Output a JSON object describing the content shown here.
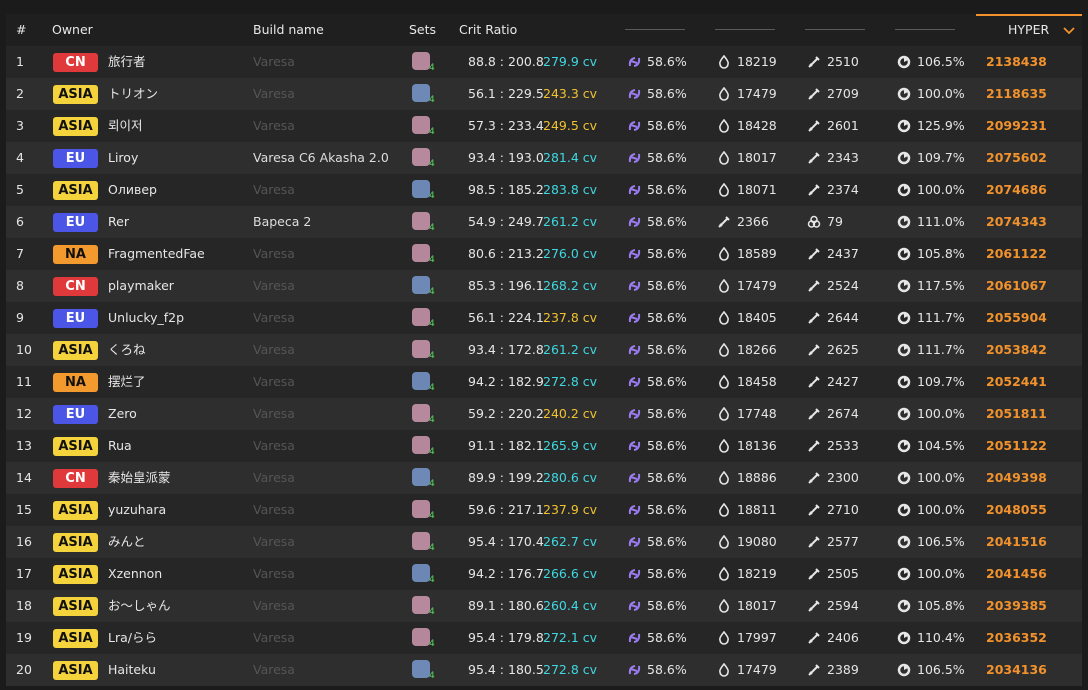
{
  "header": {
    "rank": "#",
    "owner": "Owner",
    "build": "Build name",
    "sets": "Sets",
    "crit": "Crit Ratio",
    "hyper": "HYPER"
  },
  "region_colors": {
    "CN": {
      "bg": "#e0393b",
      "fg": "#ffffff"
    },
    "ASIA": {
      "bg": "#f4d33d",
      "fg": "#111111"
    },
    "EU": {
      "bg": "#4b55e6",
      "fg": "#ffffff"
    },
    "NA": {
      "bg": "#f39a2e",
      "fg": "#111111"
    }
  },
  "rows": [
    {
      "rank": 1,
      "region": "CN",
      "owner": "旅行者",
      "build": "Varesa",
      "build_color": "#555555",
      "sets": "4",
      "crit": "88.8 : 200.8",
      "cv": "279.9 cv",
      "cv_color": "#3fd8e0",
      "stats": [
        "58.6%",
        18219,
        2510,
        "106.5%"
      ],
      "hyper": 2138438
    },
    {
      "rank": 2,
      "region": "ASIA",
      "owner": "トリオン",
      "build": "Varesa",
      "build_color": "#555555",
      "sets": "4",
      "crit": "56.1 : 229.5",
      "cv": "243.3 cv",
      "cv_color": "#f2c230",
      "stats": [
        "58.6%",
        17479,
        2709,
        "100.0%"
      ],
      "hyper": 2118635
    },
    {
      "rank": 3,
      "region": "ASIA",
      "owner": "뢰이저",
      "build": "Varesa",
      "build_color": "#555555",
      "sets": "4",
      "crit": "57.3 : 233.4",
      "cv": "249.5 cv",
      "cv_color": "#f2c230",
      "stats": [
        "58.6%",
        18428,
        2601,
        "125.9%"
      ],
      "hyper": 2099231
    },
    {
      "rank": 4,
      "region": "EU",
      "owner": "Liroy",
      "build": "Varesa C6 Akasha 2.0",
      "build_color": "#dddddd",
      "sets": "4",
      "crit": "93.4 : 193.0",
      "cv": "281.4 cv",
      "cv_color": "#3fd8e0",
      "stats": [
        "58.6%",
        18017,
        2343,
        "109.7%"
      ],
      "hyper": 2075602
    },
    {
      "rank": 5,
      "region": "ASIA",
      "owner": "Оливер",
      "build": "Varesa",
      "build_color": "#555555",
      "sets": "4",
      "crit": "98.5 : 185.2",
      "cv": "283.8 cv",
      "cv_color": "#3fd8e0",
      "stats": [
        "58.6%",
        18071,
        2374,
        "100.0%"
      ],
      "hyper": 2074686
    },
    {
      "rank": 6,
      "region": "EU",
      "owner": "Rer",
      "build": "Вареса 2",
      "build_color": "#dddddd",
      "sets": "4",
      "crit": "54.9 : 249.7",
      "cv": "261.2 cv",
      "cv_color": "#3fd8e0",
      "stats": [
        "58.6%",
        2366,
        79,
        "111.0%"
      ],
      "hyper": 2074343
    },
    {
      "rank": 7,
      "region": "NA",
      "owner": "FragmentedFae",
      "build": "Varesa",
      "build_color": "#555555",
      "sets": "4",
      "crit": "80.6 : 213.2",
      "cv": "276.0 cv",
      "cv_color": "#3fd8e0",
      "stats": [
        "58.6%",
        18589,
        2437,
        "105.8%"
      ],
      "hyper": 2061122
    },
    {
      "rank": 8,
      "region": "CN",
      "owner": "playmaker",
      "build": "Varesa",
      "build_color": "#555555",
      "sets": "4",
      "crit": "85.3 : 196.1",
      "cv": "268.2 cv",
      "cv_color": "#3fd8e0",
      "stats": [
        "58.6%",
        17479,
        2524,
        "117.5%"
      ],
      "hyper": 2061067
    },
    {
      "rank": 9,
      "region": "EU",
      "owner": "Unlucky_f2p",
      "build": "Varesa",
      "build_color": "#555555",
      "sets": "4",
      "crit": "56.1 : 224.1",
      "cv": "237.8 cv",
      "cv_color": "#f2c230",
      "stats": [
        "58.6%",
        18405,
        2644,
        "111.7%"
      ],
      "hyper": 2055904
    },
    {
      "rank": 10,
      "region": "ASIA",
      "owner": "くろね",
      "build": "Varesa",
      "build_color": "#555555",
      "sets": "4",
      "crit": "93.4 : 172.8",
      "cv": "261.2 cv",
      "cv_color": "#3fd8e0",
      "stats": [
        "58.6%",
        18266,
        2625,
        "111.7%"
      ],
      "hyper": 2053842
    },
    {
      "rank": 11,
      "region": "NA",
      "owner": "摆烂了",
      "build": "Varesa",
      "build_color": "#555555",
      "sets": "4",
      "crit": "94.2 : 182.9",
      "cv": "272.8 cv",
      "cv_color": "#3fd8e0",
      "stats": [
        "58.6%",
        18458,
        2427,
        "109.7%"
      ],
      "hyper": 2052441
    },
    {
      "rank": 12,
      "region": "EU",
      "owner": "Zero",
      "build": "Varesa",
      "build_color": "#555555",
      "sets": "4",
      "crit": "59.2 : 220.2",
      "cv": "240.2 cv",
      "cv_color": "#f2c230",
      "stats": [
        "58.6%",
        17748,
        2674,
        "100.0%"
      ],
      "hyper": 2051811
    },
    {
      "rank": 13,
      "region": "ASIA",
      "owner": "Rua",
      "build": "Varesa",
      "build_color": "#555555",
      "sets": "4",
      "crit": "91.1 : 182.1",
      "cv": "265.9 cv",
      "cv_color": "#3fd8e0",
      "stats": [
        "58.6%",
        18136,
        2533,
        "104.5%"
      ],
      "hyper": 2051122
    },
    {
      "rank": 14,
      "region": "CN",
      "owner": "秦始皇派蒙",
      "build": "Varesa",
      "build_color": "#555555",
      "sets": "4",
      "crit": "89.9 : 199.2",
      "cv": "280.6 cv",
      "cv_color": "#3fd8e0",
      "stats": [
        "58.6%",
        18886,
        2300,
        "100.0%"
      ],
      "hyper": 2049398
    },
    {
      "rank": 15,
      "region": "ASIA",
      "owner": "yuzuhara",
      "build": "Varesa",
      "build_color": "#555555",
      "sets": "4",
      "crit": "59.6 : 217.1",
      "cv": "237.9 cv",
      "cv_color": "#f2c230",
      "stats": [
        "58.6%",
        18811,
        2710,
        "100.0%"
      ],
      "hyper": 2048055
    },
    {
      "rank": 16,
      "region": "ASIA",
      "owner": "みんと",
      "build": "Varesa",
      "build_color": "#555555",
      "sets": "4",
      "crit": "95.4 : 170.4",
      "cv": "262.7 cv",
      "cv_color": "#3fd8e0",
      "stats": [
        "58.6%",
        19080,
        2577,
        "106.5%"
      ],
      "hyper": 2041516
    },
    {
      "rank": 17,
      "region": "ASIA",
      "owner": "Xzennon",
      "build": "Varesa",
      "build_color": "#555555",
      "sets": "4",
      "crit": "94.2 : 176.7",
      "cv": "266.6 cv",
      "cv_color": "#3fd8e0",
      "stats": [
        "58.6%",
        18219,
        2505,
        "100.0%"
      ],
      "hyper": 2041456
    },
    {
      "rank": 18,
      "region": "ASIA",
      "owner": "お～しゃん",
      "build": "Varesa",
      "build_color": "#555555",
      "sets": "4",
      "crit": "89.1 : 180.6",
      "cv": "260.4 cv",
      "cv_color": "#3fd8e0",
      "stats": [
        "58.6%",
        18017,
        2594,
        "105.8%"
      ],
      "hyper": 2039385
    },
    {
      "rank": 19,
      "region": "ASIA",
      "owner": "Lra/らら",
      "build": "Varesa",
      "build_color": "#555555",
      "sets": "4",
      "crit": "95.4 : 179.8",
      "cv": "272.1 cv",
      "cv_color": "#3fd8e0",
      "stats": [
        "58.6%",
        17997,
        2406,
        "110.4%"
      ],
      "hyper": 2036352
    },
    {
      "rank": 20,
      "region": "ASIA",
      "owner": "Haiteku",
      "build": "Varesa",
      "build_color": "#555555",
      "sets": "4",
      "crit": "95.4 : 180.5",
      "cv": "272.8 cv",
      "cv_color": "#3fd8e0",
      "stats": [
        "58.6%",
        17479,
        2389,
        "106.5%"
      ],
      "hyper": 2034136
    }
  ]
}
